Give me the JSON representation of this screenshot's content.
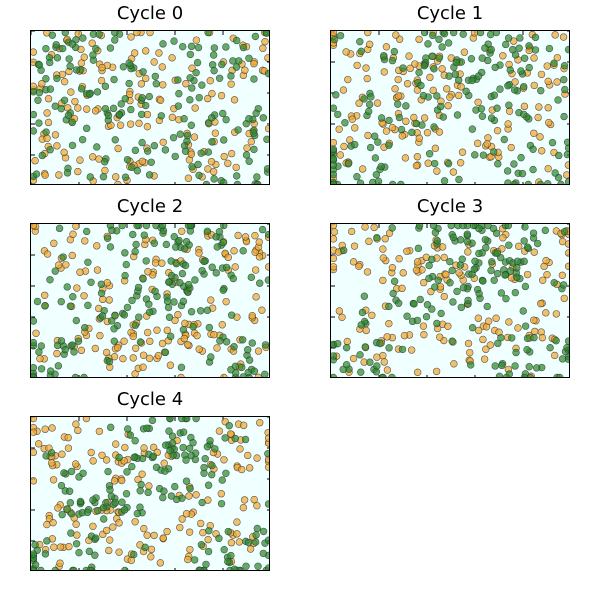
{
  "chart_data": [
    {
      "type": "scatter",
      "title": "Cycle 0",
      "xlim": [
        0,
        100
      ],
      "ylim": [
        0,
        100
      ],
      "grid": false,
      "legend": "none",
      "series": [
        {
          "color": "#2e8b2e",
          "points": []
        },
        {
          "color": "#f0a830",
          "points": []
        }
      ]
    },
    {
      "type": "scatter",
      "title": "Cycle 1",
      "xlim": [
        0,
        100
      ],
      "ylim": [
        0,
        100
      ],
      "grid": false,
      "legend": "none",
      "series": [
        {
          "color": "#2e8b2e",
          "points": []
        },
        {
          "color": "#f0a830",
          "points": []
        }
      ]
    },
    {
      "type": "scatter",
      "title": "Cycle 2",
      "xlim": [
        0,
        100
      ],
      "ylim": [
        0,
        100
      ],
      "grid": false,
      "legend": "none",
      "series": [
        {
          "color": "#2e8b2e",
          "points": []
        },
        {
          "color": "#f0a830",
          "points": []
        }
      ]
    },
    {
      "type": "scatter",
      "title": "Cycle 3",
      "xlim": [
        0,
        100
      ],
      "ylim": [
        0,
        100
      ],
      "grid": false,
      "legend": "none",
      "series": [
        {
          "color": "#2e8b2e",
          "points": []
        },
        {
          "color": "#f0a830",
          "points": []
        }
      ]
    },
    {
      "type": "scatter",
      "title": "Cycle 4",
      "xlim": [
        0,
        100
      ],
      "ylim": [
        0,
        100
      ],
      "grid": false,
      "legend": "none",
      "series": [
        {
          "color": "#2e8b2e",
          "points": []
        },
        {
          "color": "#f0a830",
          "points": []
        }
      ]
    }
  ]
}
